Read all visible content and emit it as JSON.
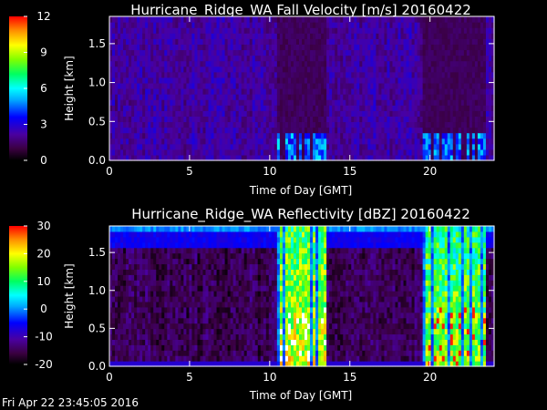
{
  "footer": {
    "timestamp": "Fri Apr 22 23:45:05 2016"
  },
  "chart_data": [
    {
      "type": "heatmap",
      "title": "Hurricane_Ridge_WA Fall Velocity [m/s] 20160422",
      "xlabel": "Time of Day [GMT]",
      "ylabel": "Height [km]",
      "xlim": [
        0,
        24
      ],
      "ylim": [
        0,
        1.85
      ],
      "xticks": [
        0,
        5,
        10,
        15,
        20
      ],
      "xtick_labels": [
        "0",
        "5",
        "10",
        "15",
        "20"
      ],
      "yticks": [
        0.0,
        0.5,
        1.0,
        1.5
      ],
      "ytick_labels": [
        "0.0",
        "0.5",
        "1.0",
        "1.5"
      ],
      "colorbar": {
        "min": 0,
        "max": 12,
        "ticks": [
          0,
          3,
          6,
          9,
          12
        ],
        "tick_labels": [
          "0",
          "3",
          "6",
          "9",
          "12"
        ],
        "colormap": "rainbow: black-purple-blue-cyan-green-yellow-orange-red"
      },
      "background_value": 2.2,
      "events": [
        {
          "t_start": 10.5,
          "t_end": 13.5,
          "low_level_max": 4.5,
          "description": "precipitation"
        },
        {
          "t_start": 19.5,
          "t_end": 23.5,
          "low_level_max": 4.5,
          "description": "precipitation"
        }
      ]
    },
    {
      "type": "heatmap",
      "title": "Hurricane_Ridge_WA Reflectivity [dBZ] 20160422",
      "xlabel": "Time of Day [GMT]",
      "ylabel": "Height [km]",
      "xlim": [
        0,
        24
      ],
      "ylim": [
        0,
        1.85
      ],
      "xticks": [
        0,
        5,
        10,
        15,
        20
      ],
      "xtick_labels": [
        "0",
        "5",
        "10",
        "15",
        "20"
      ],
      "yticks": [
        0.0,
        0.5,
        1.0,
        1.5
      ],
      "ytick_labels": [
        "0.0",
        "0.5",
        "1.0",
        "1.5"
      ],
      "colorbar": {
        "min": -20,
        "max": 30,
        "ticks": [
          -20,
          -10,
          0,
          10,
          20,
          30
        ],
        "tick_labels": [
          "-20",
          "-10",
          "0",
          "10",
          "20",
          "30"
        ],
        "colormap": "rainbow: black-purple-blue-cyan-green-yellow-orange-red-white"
      },
      "background_value": -15,
      "top_band_value": 0,
      "events": [
        {
          "t_start": 10.5,
          "t_end": 13.5,
          "peak_value": 30,
          "description": "precipitation"
        },
        {
          "t_start": 19.5,
          "t_end": 23.5,
          "peak_value": 27,
          "description": "precipitation"
        }
      ]
    }
  ]
}
